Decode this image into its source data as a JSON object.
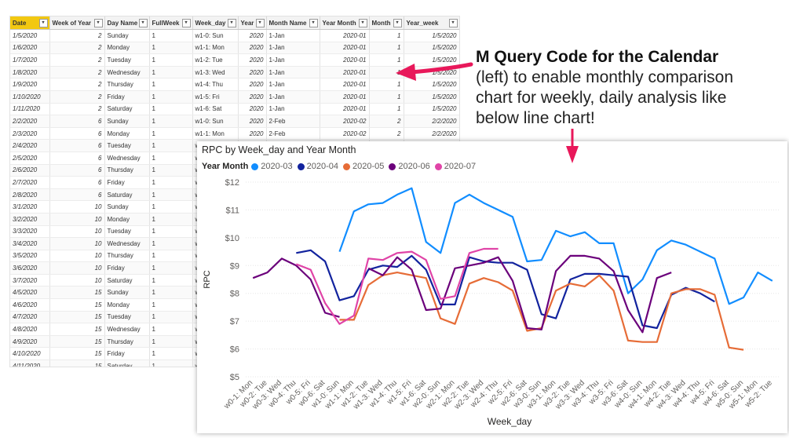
{
  "table": {
    "columns": [
      "Date",
      "Week of Year",
      "Day Name",
      "FullWeek",
      "Week_day",
      "Year",
      "Month Name",
      "Year Month",
      "Month",
      "Year_week"
    ],
    "rows": [
      [
        "1/5/2020",
        "2",
        "Sunday",
        "1",
        "w1-0: Sun",
        "2020",
        "1-Jan",
        "2020-01",
        "1",
        "1/5/2020"
      ],
      [
        "1/6/2020",
        "2",
        "Monday",
        "1",
        "w1-1: Mon",
        "2020",
        "1-Jan",
        "2020-01",
        "1",
        "1/5/2020"
      ],
      [
        "1/7/2020",
        "2",
        "Tuesday",
        "1",
        "w1-2: Tue",
        "2020",
        "1-Jan",
        "2020-01",
        "1",
        "1/5/2020"
      ],
      [
        "1/8/2020",
        "2",
        "Wednesday",
        "1",
        "w1-3: Wed",
        "2020",
        "1-Jan",
        "2020-01",
        "1",
        "1/5/2020"
      ],
      [
        "1/9/2020",
        "2",
        "Thursday",
        "1",
        "w1-4: Thu",
        "2020",
        "1-Jan",
        "2020-01",
        "1",
        "1/5/2020"
      ],
      [
        "1/10/2020",
        "2",
        "Friday",
        "1",
        "w1-5: Fri",
        "2020",
        "1-Jan",
        "2020-01",
        "1",
        "1/5/2020"
      ],
      [
        "1/11/2020",
        "2",
        "Saturday",
        "1",
        "w1-6: Sat",
        "2020",
        "1-Jan",
        "2020-01",
        "1",
        "1/5/2020"
      ],
      [
        "2/2/2020",
        "6",
        "Sunday",
        "1",
        "w1-0: Sun",
        "2020",
        "2-Feb",
        "2020-02",
        "2",
        "2/2/2020"
      ],
      [
        "2/3/2020",
        "6",
        "Monday",
        "1",
        "w1-1: Mon",
        "2020",
        "2-Feb",
        "2020-02",
        "2",
        "2/2/2020"
      ],
      [
        "2/4/2020",
        "6",
        "Tuesday",
        "1",
        "w1-2: Tue",
        "2020",
        "2-Feb",
        "2020-02",
        "2",
        "2/2/2020"
      ],
      [
        "2/5/2020",
        "6",
        "Wednesday",
        "1",
        "w",
        "",
        "",
        "",
        "",
        ""
      ],
      [
        "2/6/2020",
        "6",
        "Thursday",
        "1",
        "w",
        "",
        "",
        "",
        "",
        ""
      ],
      [
        "2/7/2020",
        "6",
        "Friday",
        "1",
        "w",
        "",
        "",
        "",
        "",
        ""
      ],
      [
        "2/8/2020",
        "6",
        "Saturday",
        "1",
        "w",
        "",
        "",
        "",
        "",
        ""
      ],
      [
        "3/1/2020",
        "10",
        "Sunday",
        "1",
        "w",
        "",
        "",
        "",
        "",
        ""
      ],
      [
        "3/2/2020",
        "10",
        "Monday",
        "1",
        "w",
        "",
        "",
        "",
        "",
        ""
      ],
      [
        "3/3/2020",
        "10",
        "Tuesday",
        "1",
        "w",
        "",
        "",
        "",
        "",
        ""
      ],
      [
        "3/4/2020",
        "10",
        "Wednesday",
        "1",
        "w",
        "",
        "",
        "",
        "",
        ""
      ],
      [
        "3/5/2020",
        "10",
        "Thursday",
        "1",
        "w",
        "",
        "",
        "",
        "",
        ""
      ],
      [
        "3/6/2020",
        "10",
        "Friday",
        "1",
        "w",
        "",
        "",
        "",
        "",
        ""
      ],
      [
        "3/7/2020",
        "10",
        "Saturday",
        "1",
        "w",
        "",
        "",
        "",
        "",
        ""
      ],
      [
        "4/5/2020",
        "15",
        "Sunday",
        "1",
        "w",
        "",
        "",
        "",
        "",
        ""
      ],
      [
        "4/6/2020",
        "15",
        "Monday",
        "1",
        "w",
        "",
        "",
        "",
        "",
        ""
      ],
      [
        "4/7/2020",
        "15",
        "Tuesday",
        "1",
        "w",
        "",
        "",
        "",
        "",
        ""
      ],
      [
        "4/8/2020",
        "15",
        "Wednesday",
        "1",
        "w",
        "",
        "",
        "",
        "",
        ""
      ],
      [
        "4/9/2020",
        "15",
        "Thursday",
        "1",
        "w",
        "",
        "",
        "",
        "",
        ""
      ],
      [
        "4/10/2020",
        "15",
        "Friday",
        "1",
        "w",
        "",
        "",
        "",
        "",
        ""
      ],
      [
        "4/11/2020",
        "15",
        "Saturday",
        "1",
        "w",
        "",
        "",
        "",
        "",
        ""
      ],
      [
        "5/3/2020",
        "19",
        "Sunday",
        "1",
        "w",
        "",
        "",
        "",
        "",
        ""
      ]
    ]
  },
  "callout": {
    "headline": "M Query Code for the Calendar",
    "body": "(left) to enable monthly comparison chart for weekly, daily analysis like below line chart!"
  },
  "colors": {
    "header_accent": "#f2c811",
    "arrow": "#e8185a"
  },
  "chart_data": {
    "type": "line",
    "title": "RPC by Week_day and Year Month",
    "legend_title": "Year Month",
    "xlabel": "Week_day",
    "ylabel": "RPC",
    "ylim": [
      5,
      12
    ],
    "yticks": [
      "$5",
      "$6",
      "$7",
      "$8",
      "$9",
      "$10",
      "$11",
      "$12"
    ],
    "grid": true,
    "legend_position": "top-left",
    "x": [
      "w0-1: Mon",
      "w0-2: Tue",
      "w0-3: Wed",
      "w0-4: Thu",
      "w0-5: Fri",
      "w0-6: Sat",
      "w1-0: Sun",
      "w1-1: Mon",
      "w1-2: Tue",
      "w1-3: Wed",
      "w1-4: Thu",
      "w1-5: Fri",
      "w1-6: Sat",
      "w2-0: Sun",
      "w2-1: Mon",
      "w2-2: Tue",
      "w2-3: Wed",
      "w2-4: Thu",
      "w2-5: Fri",
      "w2-6: Sat",
      "w3-0: Sun",
      "w3-1: Mon",
      "w3-2: Tue",
      "w3-3: Wed",
      "w3-4: Thu",
      "w3-5: Fri",
      "w3-6: Sat",
      "w4-0: Sun",
      "w4-1: Mon",
      "w4-2: Tue",
      "w4-3: Wed",
      "w4-4: Thu",
      "w4-5: Fri",
      "w4-6: Sat",
      "w5-0: Sun",
      "w5-1: Mon",
      "w5-2: Tue"
    ],
    "series": [
      {
        "name": "2020-03",
        "color": "#118dff",
        "values": [
          null,
          null,
          null,
          null,
          null,
          null,
          9.5,
          10.95,
          11.2,
          11.25,
          11.55,
          11.78,
          9.85,
          9.45,
          11.25,
          11.55,
          11.25,
          11.0,
          10.75,
          9.15,
          9.2,
          10.25,
          10.05,
          10.2,
          9.8,
          9.8,
          8.0,
          8.5,
          9.55,
          9.9,
          9.75,
          9.5,
          9.25,
          7.62,
          7.85,
          8.75,
          8.45
        ]
      },
      {
        "name": "2020-04",
        "color": "#12239e",
        "values": [
          null,
          null,
          null,
          9.45,
          9.55,
          9.15,
          7.75,
          7.9,
          8.85,
          9.0,
          8.95,
          9.35,
          8.85,
          7.6,
          7.6,
          9.3,
          9.15,
          9.1,
          9.1,
          8.85,
          7.25,
          7.1,
          8.5,
          8.7,
          8.7,
          8.65,
          8.6,
          6.85,
          6.75,
          7.95,
          8.2,
          8.0,
          7.7,
          null,
          null,
          null,
          null
        ]
      },
      {
        "name": "2020-05",
        "color": "#e66c37",
        "values": [
          null,
          null,
          null,
          null,
          null,
          null,
          7.05,
          7.05,
          8.3,
          8.65,
          8.75,
          8.65,
          8.55,
          7.1,
          6.9,
          8.35,
          8.55,
          8.4,
          8.1,
          6.65,
          6.75,
          8.1,
          8.35,
          8.25,
          8.65,
          8.1,
          6.3,
          6.25,
          6.25,
          8.0,
          8.15,
          8.15,
          7.95,
          6.05,
          5.97,
          null,
          null
        ]
      },
      {
        "name": "2020-06",
        "color": "#6b007b",
        "values": [
          8.55,
          8.75,
          9.25,
          9.0,
          8.5,
          7.3,
          7.15,
          null,
          8.9,
          8.65,
          9.3,
          8.85,
          7.4,
          7.45,
          8.9,
          9.0,
          9.1,
          9.3,
          8.45,
          6.75,
          6.7,
          8.8,
          9.35,
          9.35,
          9.25,
          8.8,
          7.4,
          6.6,
          8.55,
          8.75,
          null,
          null,
          null,
          null,
          null,
          null,
          null
        ]
      },
      {
        "name": "2020-07",
        "color": "#e044a7",
        "values": [
          null,
          null,
          null,
          9.05,
          8.85,
          7.65,
          6.9,
          7.2,
          9.25,
          9.2,
          9.45,
          9.5,
          9.2,
          7.8,
          7.9,
          9.45,
          9.6,
          9.6,
          null,
          null,
          null,
          null,
          null,
          null,
          null,
          null,
          null,
          null,
          null,
          null,
          null,
          null,
          null,
          null,
          null,
          null,
          null
        ]
      }
    ]
  }
}
